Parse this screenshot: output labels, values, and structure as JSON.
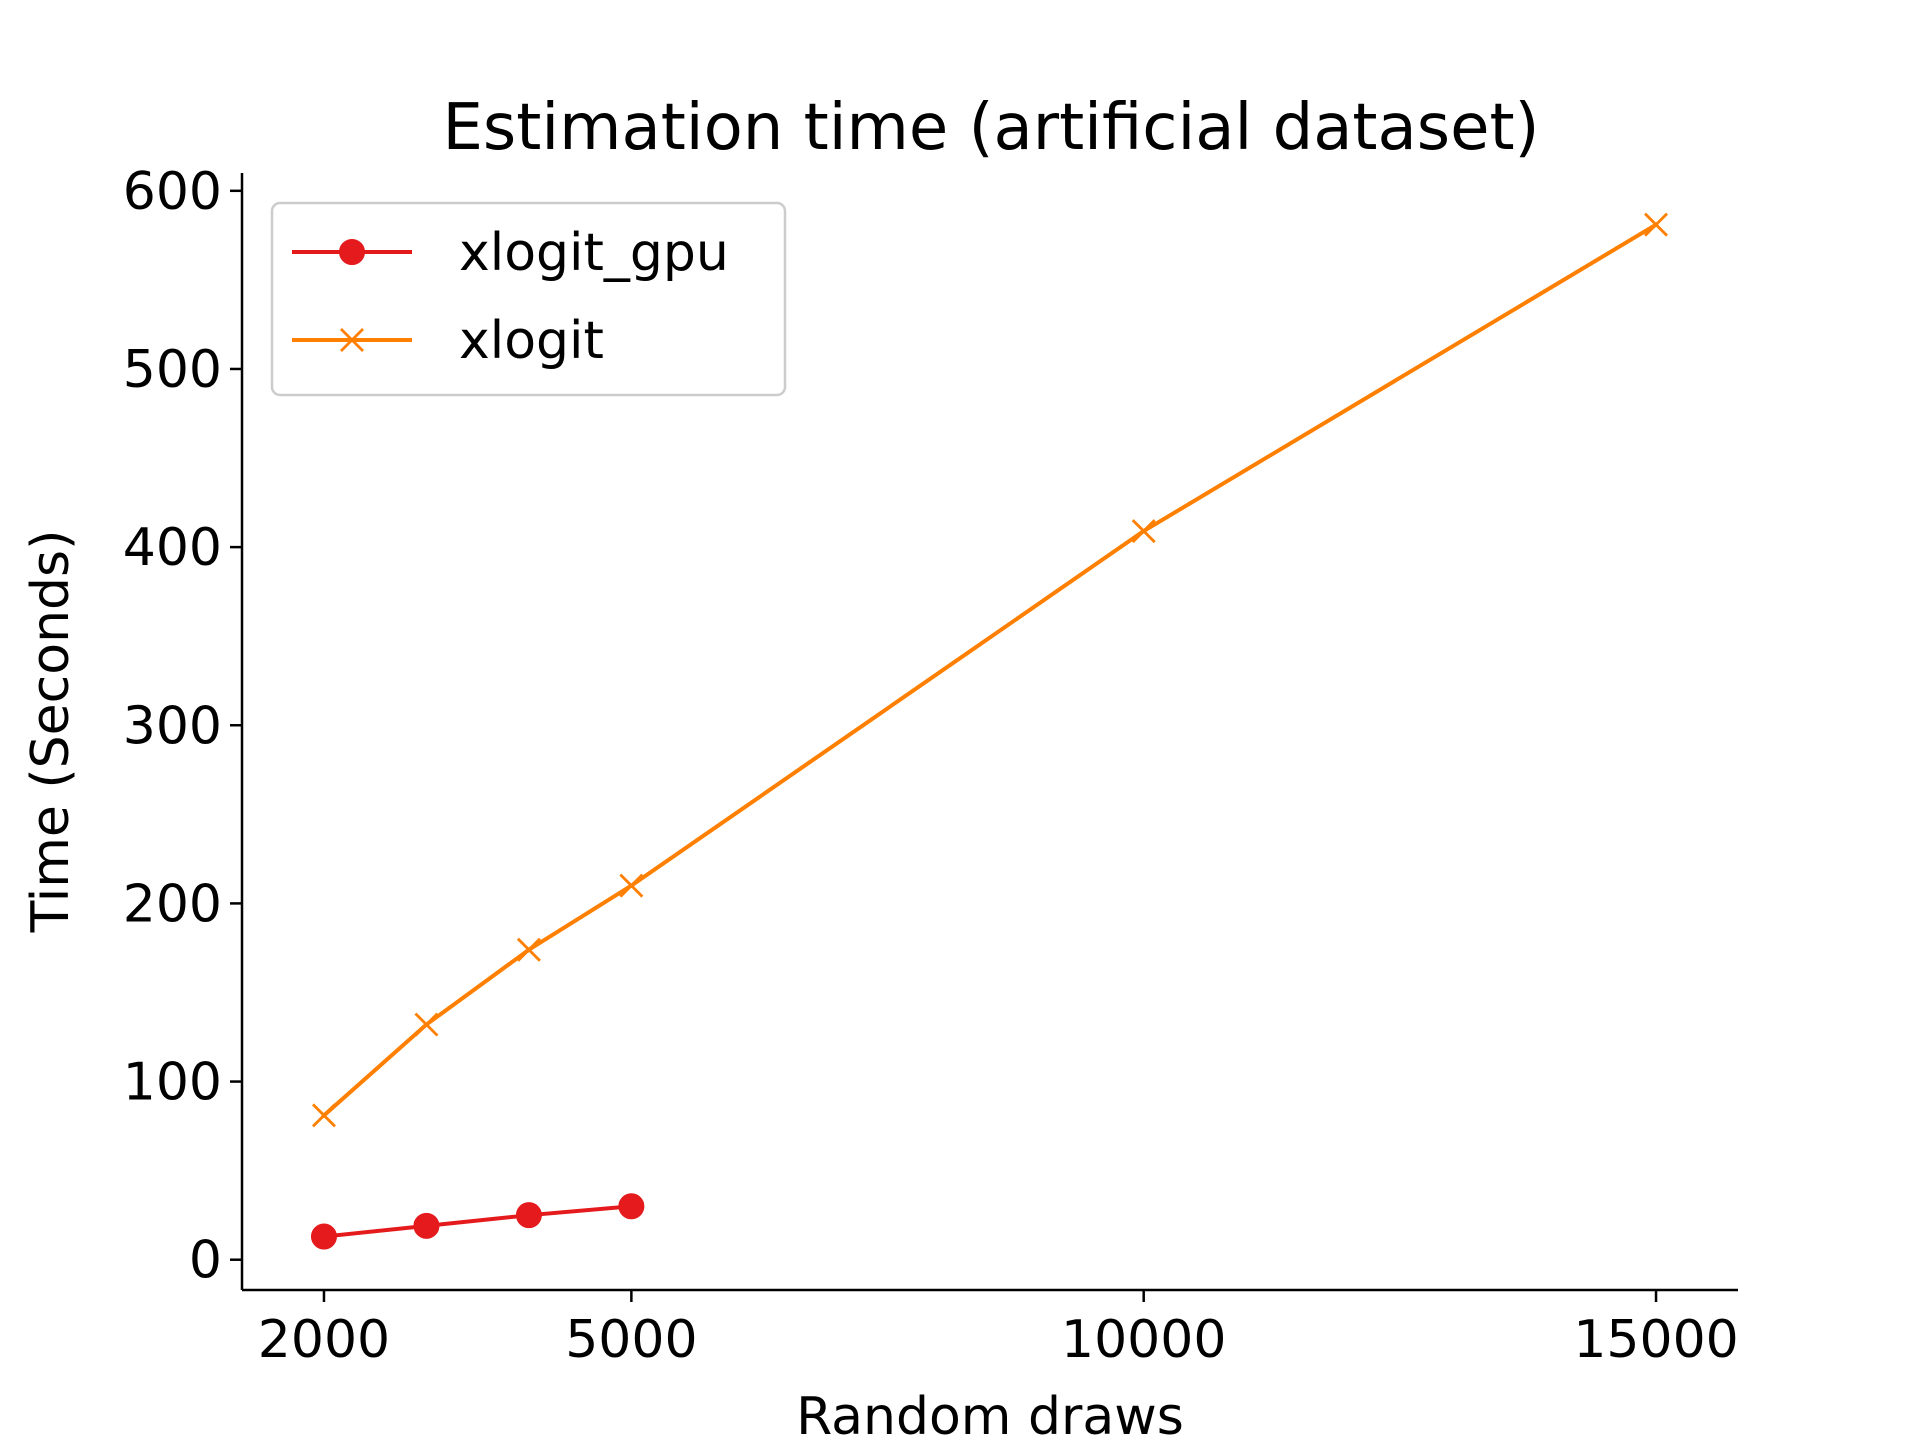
{
  "chart_data": {
    "type": "line",
    "title": "Estimation time (artificial dataset)",
    "xlabel": "Random draws",
    "ylabel": "Time (Seconds)",
    "xlim": [
      1200,
      15800
    ],
    "ylim": [
      -17,
      610
    ],
    "xticks": [
      2000,
      5000,
      10000,
      15000
    ],
    "yticks": [
      0,
      100,
      200,
      300,
      400,
      500,
      600
    ],
    "grid": false,
    "legend_position": "top-left",
    "series": [
      {
        "name": "xlogit_gpu",
        "color": "#e41a1c",
        "marker": "circle",
        "x": [
          2000,
          3000,
          4000,
          5000
        ],
        "y": [
          13,
          19,
          25,
          30
        ]
      },
      {
        "name": "xlogit",
        "color": "#ff7f00",
        "marker": "x",
        "x": [
          2000,
          3000,
          4000,
          5000,
          10000,
          15000
        ],
        "y": [
          81,
          132,
          174,
          210,
          409,
          581
        ]
      }
    ]
  }
}
